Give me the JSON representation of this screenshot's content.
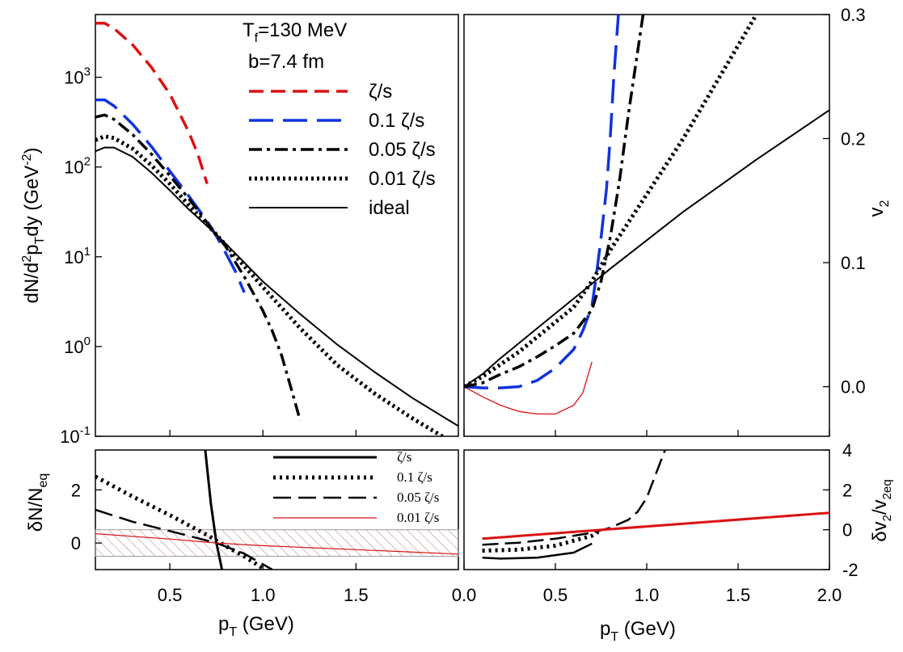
{
  "labels": {
    "xlabel_left": "p",
    "xlabel_left_sub": "T",
    "xlabel_left_unit": " (GeV)",
    "xlabel_right": "p",
    "xlabel_right_sub": "T",
    "xlabel_right_unit": " (GeV)",
    "ylabel_spectra": "dN/d",
    "ylabel_spectra_sup": "2",
    "ylabel_spectra_mid": "p",
    "ylabel_spectra_sub": "T",
    "ylabel_spectra_end": "dy (GeV",
    "ylabel_spectra_exp": "-2",
    "ylabel_spectra_close": ")",
    "ylabel_v2": "v",
    "ylabel_v2_sub": "2",
    "ylabel_dn": "δN/N",
    "ylabel_dn_sub": "eq",
    "ylabel_dv": "δv",
    "ylabel_dv_sub": "2",
    "ylabel_dv_mid": "/v",
    "ylabel_dv_sub2": "2eq",
    "ann_tf": "T",
    "ann_tf_sub": "f",
    "ann_tf_val": "=130 MeV",
    "ann_b": "b=7.4 fm"
  },
  "legend_top": [
    {
      "label": "ζ/s",
      "color": "#dd1111",
      "dash": "18,9",
      "width": 3.5
    },
    {
      "label": "0.1 ζ/s",
      "color": "#1133dd",
      "dash": "30,12",
      "width": 3.5
    },
    {
      "label": "0.05 ζ/s",
      "color": "#000000",
      "dash": "16,6,4,6",
      "width": 3.5
    },
    {
      "label": "0.01 ζ/s",
      "color": "#000000",
      "dash": "3,4",
      "width": 5
    },
    {
      "label": "ideal",
      "color": "#000000",
      "dash": "",
      "width": 2
    }
  ],
  "legend_bottom": [
    {
      "label": "ζ/s",
      "color": "#000000",
      "dash": "",
      "width": 3
    },
    {
      "label": "0.1 ζ/s",
      "color": "#000000",
      "dash": "3,5",
      "width": 5
    },
    {
      "label": "0.05 ζ/s",
      "color": "#000000",
      "dash": "22,9",
      "width": 2.5
    },
    {
      "label": "0.01 ζ/s",
      "color": "#dd1111",
      "dash": "",
      "width": 1.2
    }
  ],
  "chart_data": [
    {
      "id": "spectra",
      "type": "line",
      "yscale": "log",
      "xlim": [
        0.1,
        2.05
      ],
      "ylim": [
        0.1,
        5000
      ],
      "xticks": [
        0.5,
        1.0,
        1.5
      ],
      "yticks": [
        {
          "v": 0.1,
          "b": "10",
          "e": "-1"
        },
        {
          "v": 1,
          "b": "10",
          "e": "0"
        },
        {
          "v": 10,
          "b": "10",
          "e": "1"
        },
        {
          "v": 100,
          "b": "10",
          "e": "2"
        },
        {
          "v": 1000,
          "b": "10",
          "e": "3"
        }
      ],
      "series": [
        {
          "name": "ζ/s",
          "x": [
            0.1,
            0.15,
            0.2,
            0.3,
            0.4,
            0.5,
            0.6,
            0.65,
            0.7
          ],
          "y": [
            4000,
            4000,
            3500,
            2300,
            1300,
            650,
            250,
            140,
            65
          ]
        },
        {
          "name": "0.1 ζ/s",
          "x": [
            0.1,
            0.15,
            0.2,
            0.3,
            0.4,
            0.5,
            0.6,
            0.7,
            0.75,
            0.8,
            0.85,
            0.9
          ],
          "y": [
            560,
            560,
            480,
            300,
            170,
            90,
            48,
            25,
            17,
            11,
            7,
            4
          ]
        },
        {
          "name": "0.05 ζ/s",
          "x": [
            0.1,
            0.15,
            0.2,
            0.3,
            0.4,
            0.5,
            0.6,
            0.7,
            0.8,
            0.9,
            1.0,
            1.05,
            1.1,
            1.15,
            1.2
          ],
          "y": [
            360,
            380,
            340,
            230,
            140,
            80,
            45,
            24,
            13,
            6,
            2.5,
            1.5,
            0.8,
            0.35,
            0.15
          ]
        },
        {
          "name": "0.01 ζ/s",
          "x": [
            0.1,
            0.15,
            0.2,
            0.3,
            0.4,
            0.5,
            0.6,
            0.7,
            0.8,
            1.0,
            1.2,
            1.4,
            1.6,
            1.8,
            2.0
          ],
          "y": [
            200,
            220,
            210,
            160,
            105,
            65,
            38,
            23,
            13.5,
            4.6,
            1.6,
            0.62,
            0.3,
            0.16,
            0.09
          ]
        },
        {
          "name": "ideal",
          "x": [
            0.1,
            0.15,
            0.2,
            0.3,
            0.4,
            0.5,
            0.6,
            0.7,
            0.8,
            1.0,
            1.2,
            1.4,
            1.6,
            1.8,
            2.0,
            2.05
          ],
          "y": [
            150,
            165,
            165,
            130,
            87,
            55,
            34,
            22,
            14,
            5.3,
            2.3,
            1.05,
            0.52,
            0.27,
            0.15,
            0.13
          ]
        }
      ]
    },
    {
      "id": "v2",
      "type": "line",
      "xlim": [
        0.0,
        2.0
      ],
      "ylim": [
        -0.04,
        0.3
      ],
      "xticks": [
        0.0,
        0.5,
        1.0,
        1.5,
        2.0
      ],
      "yticks": [
        0.0,
        0.1,
        0.2,
        0.3
      ],
      "ylabel": "v2",
      "series": [
        {
          "name": "ζ/s",
          "x": [
            0.0,
            0.1,
            0.2,
            0.3,
            0.4,
            0.5,
            0.6,
            0.65,
            0.7
          ],
          "y": [
            0.0,
            -0.008,
            -0.015,
            -0.02,
            -0.022,
            -0.022,
            -0.015,
            -0.005,
            0.02
          ]
        },
        {
          "name": "0.1 ζ/s",
          "x": [
            0.0,
            0.1,
            0.2,
            0.3,
            0.4,
            0.5,
            0.6,
            0.65,
            0.7,
            0.72,
            0.75,
            0.78,
            0.8,
            0.82,
            0.85
          ],
          "y": [
            0.0,
            -0.001,
            -0.001,
            0.0,
            0.005,
            0.015,
            0.03,
            0.045,
            0.065,
            0.085,
            0.12,
            0.16,
            0.2,
            0.25,
            0.31
          ]
        },
        {
          "name": "0.05 ζ/s",
          "x": [
            0.0,
            0.1,
            0.2,
            0.3,
            0.4,
            0.5,
            0.6,
            0.7,
            0.75,
            0.8,
            0.85,
            0.9,
            0.95,
            0.98
          ],
          "y": [
            0.0,
            0.003,
            0.01,
            0.016,
            0.024,
            0.033,
            0.043,
            0.062,
            0.085,
            0.12,
            0.165,
            0.22,
            0.27,
            0.3
          ]
        },
        {
          "name": "0.01 ζ/s",
          "x": [
            0.0,
            0.1,
            0.2,
            0.3,
            0.4,
            0.5,
            0.6,
            0.7,
            0.8,
            1.0,
            1.2,
            1.4,
            1.6
          ],
          "y": [
            0.0,
            0.008,
            0.018,
            0.028,
            0.04,
            0.052,
            0.064,
            0.085,
            0.11,
            0.155,
            0.2,
            0.25,
            0.3
          ]
        },
        {
          "name": "ideal",
          "x": [
            0.0,
            0.1,
            0.2,
            0.3,
            0.4,
            0.5,
            0.6,
            0.7,
            0.8,
            1.0,
            1.2,
            1.4,
            1.6,
            1.8,
            2.0
          ],
          "y": [
            0.0,
            0.01,
            0.023,
            0.035,
            0.047,
            0.059,
            0.071,
            0.083,
            0.095,
            0.118,
            0.141,
            0.162,
            0.183,
            0.203,
            0.223
          ]
        }
      ]
    },
    {
      "id": "dN",
      "type": "line",
      "xlim": [
        0.1,
        2.05
      ],
      "ylim": [
        -1.0,
        3.5
      ],
      "yticks": [
        0,
        2
      ],
      "band": [
        -0.5,
        0.5
      ],
      "series": [
        {
          "name": "ζ/s",
          "x": [
            0.69,
            0.72,
            0.75,
            0.78
          ],
          "y": [
            3.5,
            1.5,
            0.0,
            -1.0
          ]
        },
        {
          "name": "0.1 ζ/s",
          "x": [
            0.1,
            0.3,
            0.5,
            0.7,
            0.77,
            0.9,
            1.0
          ],
          "y": [
            2.5,
            1.75,
            1.05,
            0.3,
            0.0,
            -0.5,
            -0.95
          ]
        },
        {
          "name": "0.05 ζ/s",
          "x": [
            0.1,
            0.3,
            0.5,
            0.75,
            0.9,
            1.05
          ],
          "y": [
            1.25,
            0.8,
            0.45,
            0.0,
            -0.4,
            -1.0
          ]
        },
        {
          "name": "0.01 ζ/s",
          "x": [
            0.1,
            0.5,
            0.75,
            1.0,
            1.5,
            2.0,
            2.05
          ],
          "y": [
            0.35,
            0.15,
            0.0,
            -0.1,
            -0.25,
            -0.4,
            -0.42
          ]
        }
      ]
    },
    {
      "id": "dv2",
      "type": "line",
      "xlim": [
        0.0,
        2.0
      ],
      "ylim": [
        -2,
        4
      ],
      "yticks": [
        -2,
        0,
        2,
        4
      ],
      "series": [
        {
          "name": "ζ/s",
          "x": [
            0.1,
            0.2,
            0.4,
            0.6,
            0.7
          ],
          "y": [
            -1.4,
            -1.45,
            -1.4,
            -1.15,
            -0.7
          ]
        },
        {
          "name": "0.1 ζ/s",
          "x": [
            0.1,
            0.3,
            0.5,
            0.7,
            0.75
          ],
          "y": [
            -1.05,
            -1.0,
            -0.8,
            -0.3,
            0.0
          ]
        },
        {
          "name": "0.05 ζ/s",
          "x": [
            0.1,
            0.3,
            0.5,
            0.7,
            0.8,
            0.9,
            0.95,
            1.0,
            1.05,
            1.1
          ],
          "y": [
            -0.75,
            -0.65,
            -0.45,
            -0.15,
            0.1,
            0.5,
            0.9,
            1.6,
            2.8,
            4.0
          ]
        },
        {
          "name": "0.01 ζ/s",
          "x": [
            0.1,
            2.0
          ],
          "y": [
            -0.45,
            0.85
          ]
        }
      ]
    }
  ]
}
